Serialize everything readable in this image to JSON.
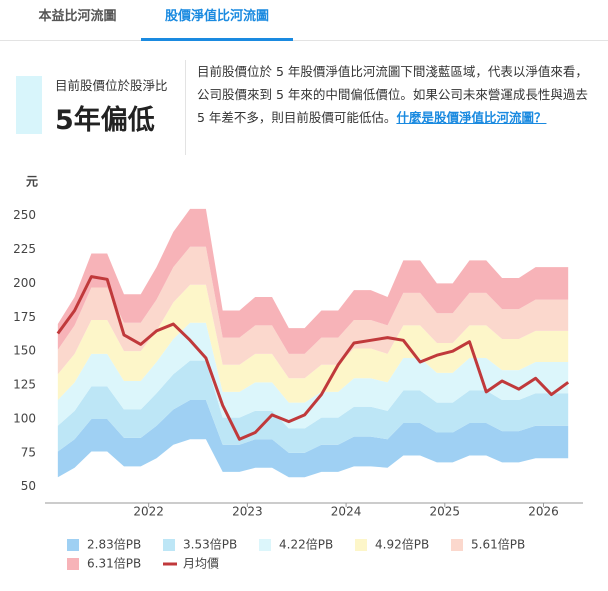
{
  "tabs": [
    "本益比河流圖",
    "股價淨值比河流圖"
  ],
  "summary": {
    "label": "目前股價位於股淨比",
    "value": "5年偏低"
  },
  "description": {
    "text": "目前股價位於 5 年股價淨值比河流圖下間淺藍區域，代表以淨值來看，公司股價來到 5 年來的中間偏低價位。如果公司未來營運成長性與過去 5 年差不多，則目前股價可能低估。",
    "link": "什麼是股價淨值比河流圖？"
  },
  "chart_data": {
    "type": "river",
    "ylabel": "元",
    "x": [
      2021.08,
      2021.25,
      2021.42,
      2021.58,
      2021.75,
      2021.92,
      2022.08,
      2022.25,
      2022.42,
      2022.58,
      2022.75,
      2022.92,
      2023.08,
      2023.25,
      2023.42,
      2023.58,
      2023.75,
      2023.92,
      2024.08,
      2024.25,
      2024.42,
      2024.58,
      2024.75,
      2024.92,
      2025.08,
      2025.25,
      2025.42,
      2025.58,
      2025.75,
      2025.92,
      2026.08,
      2026.25
    ],
    "xlim": [
      2020.95,
      2026.4
    ],
    "xticks": [
      2022,
      2023,
      2024,
      2025,
      2026
    ],
    "ylim": [
      38,
      277
    ],
    "yticks": [
      50,
      75,
      100,
      125,
      150,
      175,
      200,
      225,
      250
    ],
    "series": [
      {
        "name": "2.83倍PB",
        "color": "#9fd0f3",
        "values": [
          76,
          85,
          100,
          100,
          86,
          86,
          95,
          107,
          114,
          114,
          81,
          81,
          85,
          85,
          75,
          75,
          81,
          81,
          87,
          87,
          85,
          97,
          97,
          90,
          90,
          97,
          97,
          91,
          91,
          95,
          95,
          95
        ]
      },
      {
        "name": "3.53倍PB",
        "color": "#bde6f6",
        "values": [
          95,
          106,
          124,
          124,
          107,
          107,
          119,
          133,
          143,
          143,
          101,
          101,
          106,
          106,
          93,
          93,
          101,
          101,
          109,
          109,
          106,
          121,
          121,
          112,
          112,
          121,
          121,
          114,
          114,
          119,
          119,
          119
        ]
      },
      {
        "name": "4.22倍PB",
        "color": "#dcf6fb",
        "values": [
          114,
          127,
          148,
          148,
          128,
          128,
          142,
          159,
          171,
          171,
          120,
          120,
          127,
          127,
          112,
          112,
          120,
          120,
          130,
          130,
          127,
          145,
          145,
          134,
          134,
          145,
          145,
          136,
          136,
          142,
          142,
          142
        ]
      },
      {
        "name": "4.92倍PB",
        "color": "#fdf6c9",
        "values": [
          133,
          148,
          173,
          173,
          150,
          150,
          165,
          186,
          199,
          199,
          140,
          140,
          148,
          148,
          130,
          130,
          140,
          140,
          152,
          152,
          148,
          169,
          169,
          156,
          156,
          169,
          169,
          159,
          159,
          165,
          165,
          165
        ]
      },
      {
        "name": "5.61倍PB",
        "color": "#fbd8cd",
        "values": [
          151,
          169,
          197,
          197,
          171,
          171,
          188,
          212,
          227,
          227,
          160,
          160,
          169,
          169,
          148,
          148,
          160,
          160,
          173,
          173,
          169,
          193,
          193,
          178,
          178,
          193,
          193,
          181,
          181,
          188,
          188,
          188
        ]
      },
      {
        "name": "6.31倍PB",
        "color": "#f7b3b8",
        "values": [
          170,
          190,
          222,
          222,
          192,
          192,
          212,
          238,
          255,
          255,
          180,
          180,
          190,
          190,
          167,
          167,
          180,
          180,
          195,
          195,
          190,
          217,
          217,
          200,
          200,
          217,
          217,
          204,
          204,
          212,
          212,
          212
        ]
      },
      {
        "name": "月均價",
        "color": "#c0393b",
        "kind": "line",
        "values": [
          163,
          180,
          205,
          203,
          162,
          155,
          165,
          170,
          158,
          145,
          110,
          85,
          90,
          103,
          98,
          103,
          118,
          140,
          156,
          158,
          160,
          158,
          142,
          147,
          150,
          157,
          120,
          128,
          122,
          130,
          118,
          127
        ]
      }
    ]
  }
}
